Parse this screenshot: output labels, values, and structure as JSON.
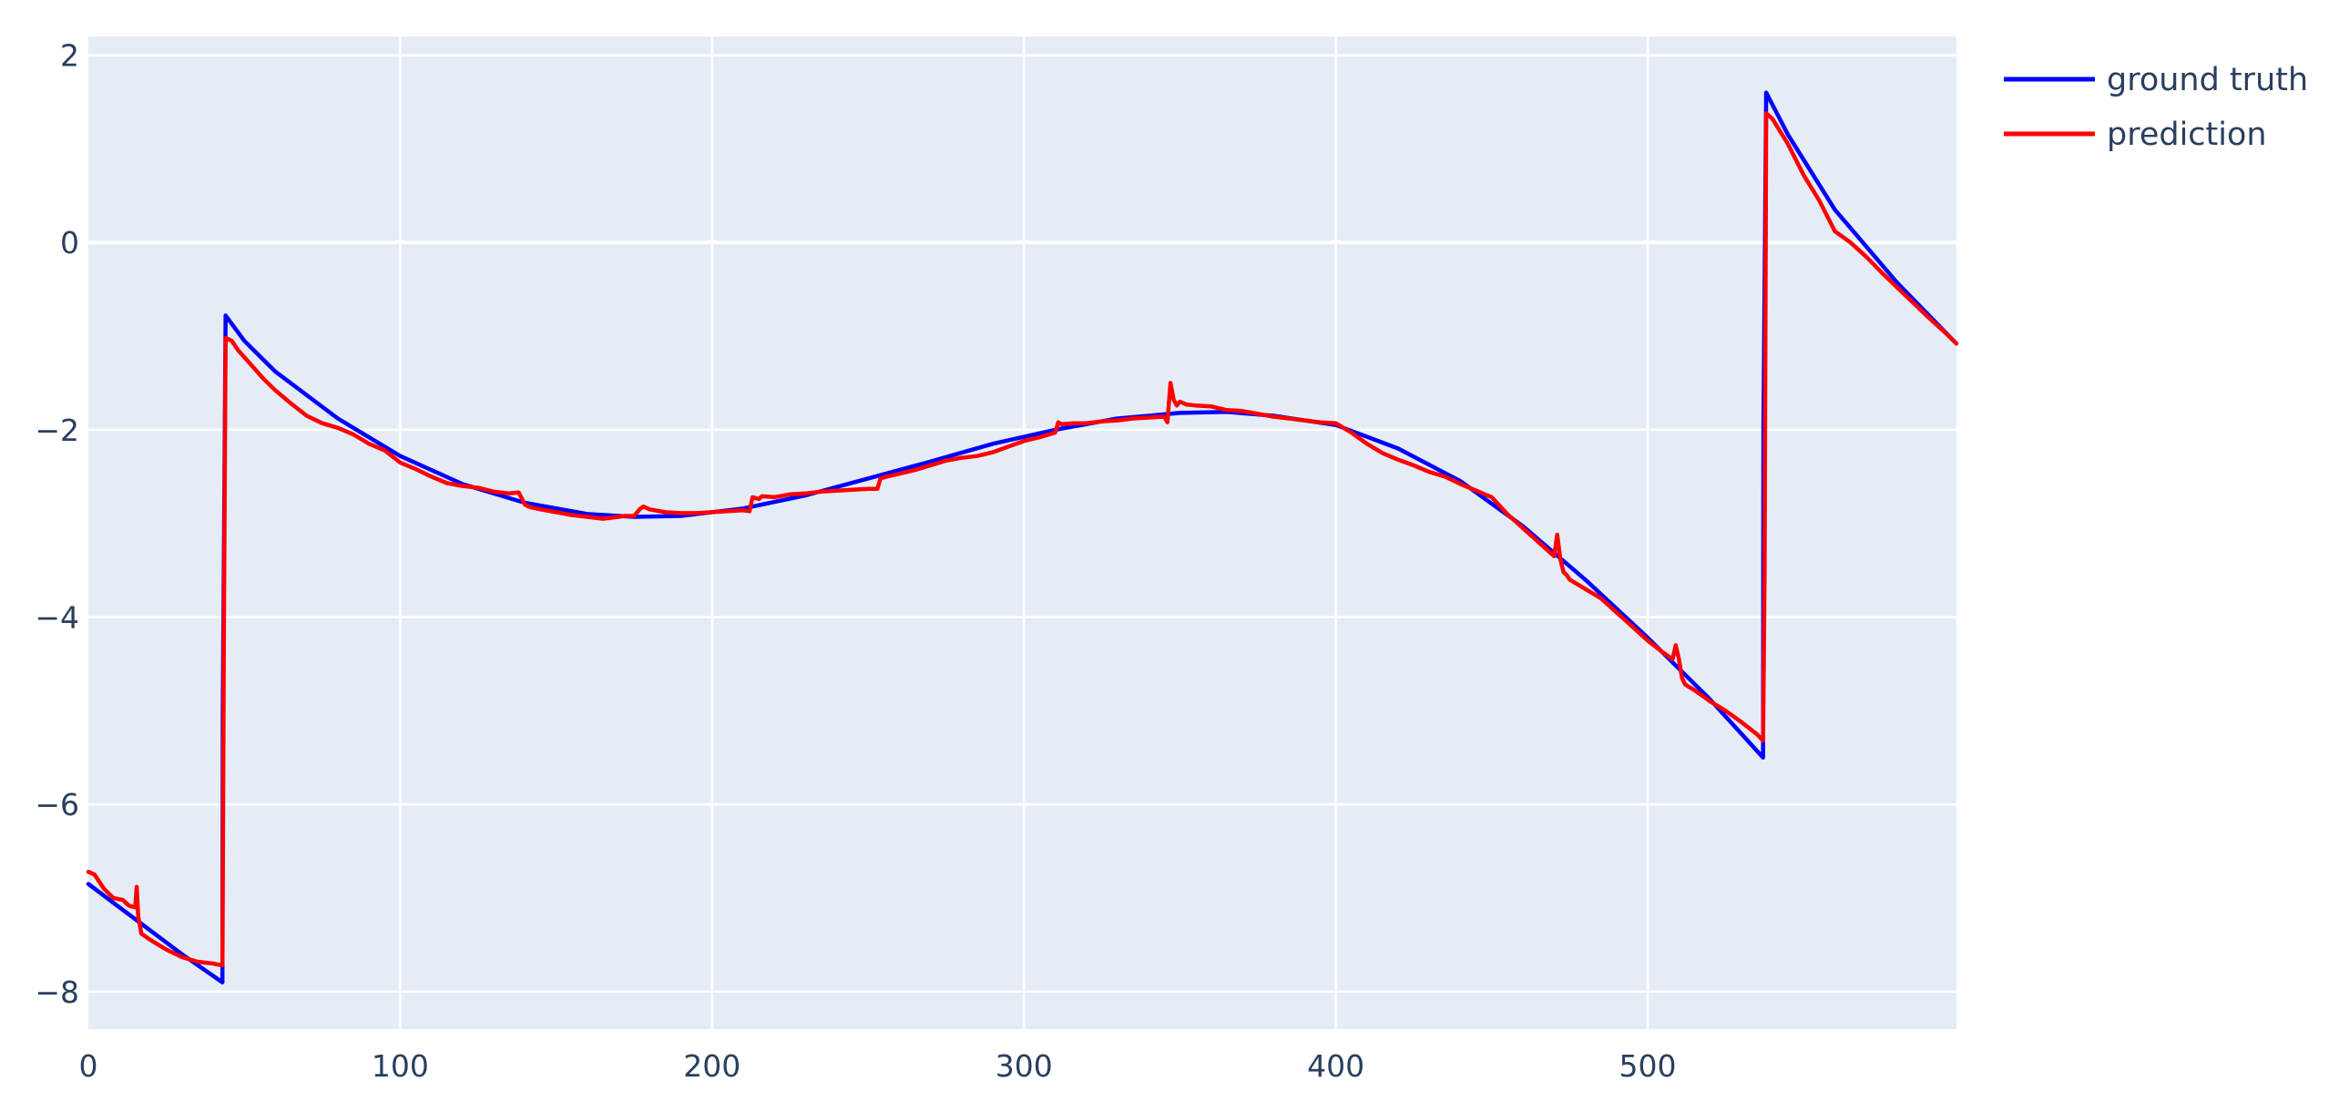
{
  "chart_data": {
    "type": "line",
    "title": "",
    "xlabel": "",
    "ylabel": "",
    "xlim": [
      0,
      599
    ],
    "ylim": [
      -8.4,
      2.2
    ],
    "x_ticks": [
      "0",
      "100",
      "200",
      "300",
      "400",
      "500"
    ],
    "y_ticks": [
      "2",
      "0",
      "−2",
      "−4",
      "−6",
      "−8"
    ],
    "grid": true,
    "legend_position": "top-right",
    "background_color": "#e5ecf6",
    "series": [
      {
        "name": "ground truth",
        "color": "#0000ff",
        "x": [
          0,
          10,
          20,
          30,
          43,
          43.1,
          44,
          50,
          60,
          80,
          100,
          120,
          140,
          160,
          175,
          190,
          210,
          230,
          250,
          270,
          290,
          310,
          330,
          350,
          365,
          380,
          400,
          420,
          440,
          460,
          480,
          500,
          520,
          537,
          537.1,
          538,
          545,
          560,
          580,
          599
        ],
        "y": [
          -6.85,
          -7.1,
          -7.35,
          -7.6,
          -7.9,
          -5.0,
          -0.78,
          -1.05,
          -1.38,
          -1.88,
          -2.28,
          -2.58,
          -2.78,
          -2.9,
          -2.93,
          -2.92,
          -2.84,
          -2.7,
          -2.52,
          -2.34,
          -2.15,
          -2.0,
          -1.88,
          -1.82,
          -1.81,
          -1.85,
          -1.95,
          -2.2,
          -2.55,
          -3.03,
          -3.6,
          -4.22,
          -4.88,
          -5.5,
          -2.0,
          1.6,
          1.15,
          0.35,
          -0.43,
          -1.08
        ]
      },
      {
        "name": "prediction",
        "color": "#ff0000",
        "x": [
          0,
          2,
          5,
          8,
          11,
          13,
          15,
          15.5,
          16,
          17,
          20,
          25,
          30,
          35,
          40,
          43,
          43.5,
          44,
          46,
          48,
          52,
          56,
          60,
          65,
          70,
          75,
          80,
          85,
          90,
          95,
          100,
          105,
          110,
          115,
          120,
          125,
          130,
          135,
          138,
          140,
          142,
          145,
          150,
          155,
          160,
          165,
          170,
          172,
          175,
          177,
          178,
          180,
          185,
          190,
          195,
          200,
          205,
          210,
          212,
          213,
          215,
          216,
          220,
          225,
          230,
          235,
          240,
          245,
          250,
          253,
          254,
          256,
          260,
          265,
          270,
          275,
          280,
          285,
          290,
          295,
          300,
          305,
          310,
          311,
          312,
          316,
          320,
          325,
          330,
          335,
          340,
          345,
          346,
          347,
          348,
          349,
          350,
          352,
          355,
          360,
          365,
          370,
          375,
          380,
          385,
          390,
          395,
          400,
          405,
          410,
          415,
          420,
          425,
          430,
          435,
          440,
          445,
          450,
          455,
          460,
          465,
          470,
          471,
          472,
          473,
          474,
          475,
          480,
          485,
          490,
          495,
          500,
          505,
          508,
          509,
          510,
          511,
          512,
          515,
          520,
          525,
          530,
          535,
          537,
          537.5,
          538,
          540,
          545,
          550,
          555,
          560,
          565,
          570,
          575,
          580,
          585,
          590,
          595,
          599
        ],
        "y": [
          -6.72,
          -6.75,
          -6.9,
          -7.0,
          -7.02,
          -7.08,
          -7.1,
          -6.88,
          -7.2,
          -7.38,
          -7.45,
          -7.55,
          -7.63,
          -7.68,
          -7.7,
          -7.72,
          -4.0,
          -1.02,
          -1.05,
          -1.15,
          -1.3,
          -1.45,
          -1.58,
          -1.72,
          -1.85,
          -1.93,
          -1.98,
          -2.05,
          -2.15,
          -2.22,
          -2.35,
          -2.42,
          -2.5,
          -2.57,
          -2.6,
          -2.62,
          -2.66,
          -2.68,
          -2.67,
          -2.8,
          -2.83,
          -2.85,
          -2.88,
          -2.91,
          -2.93,
          -2.95,
          -2.93,
          -2.92,
          -2.92,
          -2.84,
          -2.82,
          -2.85,
          -2.88,
          -2.89,
          -2.89,
          -2.88,
          -2.87,
          -2.86,
          -2.87,
          -2.72,
          -2.74,
          -2.71,
          -2.72,
          -2.69,
          -2.68,
          -2.66,
          -2.65,
          -2.64,
          -2.63,
          -2.63,
          -2.52,
          -2.5,
          -2.47,
          -2.43,
          -2.38,
          -2.33,
          -2.3,
          -2.28,
          -2.24,
          -2.18,
          -2.12,
          -2.08,
          -2.03,
          -1.92,
          -1.94,
          -1.93,
          -1.93,
          -1.91,
          -1.9,
          -1.88,
          -1.87,
          -1.86,
          -1.92,
          -1.5,
          -1.68,
          -1.74,
          -1.7,
          -1.73,
          -1.74,
          -1.75,
          -1.79,
          -1.8,
          -1.83,
          -1.86,
          -1.88,
          -1.9,
          -1.92,
          -1.93,
          -2.03,
          -2.15,
          -2.25,
          -2.32,
          -2.38,
          -2.45,
          -2.5,
          -2.58,
          -2.65,
          -2.72,
          -2.9,
          -3.05,
          -3.2,
          -3.35,
          -3.12,
          -3.38,
          -3.52,
          -3.55,
          -3.6,
          -3.7,
          -3.8,
          -3.95,
          -4.1,
          -4.25,
          -4.38,
          -4.45,
          -4.3,
          -4.45,
          -4.65,
          -4.72,
          -4.78,
          -4.9,
          -5.0,
          -5.12,
          -5.25,
          -5.32,
          -3.5,
          1.38,
          1.32,
          1.05,
          0.72,
          0.45,
          0.12,
          0.0,
          -0.15,
          -0.32,
          -0.48,
          -0.64,
          -0.8,
          -0.95,
          -1.08
        ]
      }
    ]
  }
}
